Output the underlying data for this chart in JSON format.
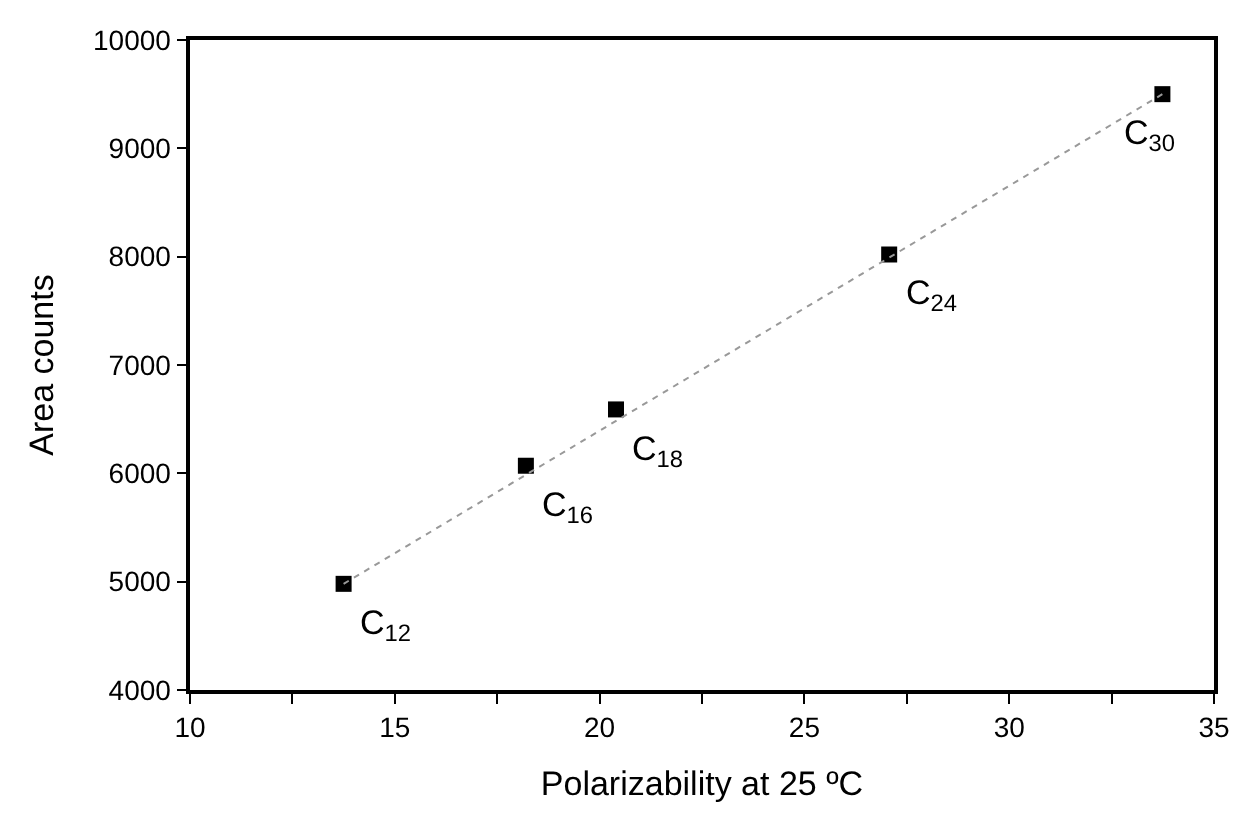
{
  "chart_data": {
    "type": "scatter",
    "xlabel": "Polarizability at 25 ºC",
    "ylabel": "Area counts",
    "x": [
      13.75,
      18.2,
      20.4,
      27.07,
      33.74
    ],
    "series": [
      {
        "color": "#000000",
        "marker": "square",
        "values": [
          4980,
          6070,
          6590,
          8020,
          9500
        ]
      },
      {
        "type": "line",
        "color": "#999999",
        "line_style": "dotted",
        "marker": "none",
        "x": [
          13.75,
          33.74
        ],
        "values": [
          4980,
          9500
        ]
      }
    ],
    "xlim": [
      10,
      35
    ],
    "ylim": [
      4000,
      10000
    ],
    "xticks": [
      10,
      {
        "value": 12.5,
        "label": null
      },
      15,
      {
        "value": 17.5,
        "label": null
      },
      20,
      {
        "value": 22.5,
        "label": null
      },
      25,
      {
        "value": 27.5,
        "label": null
      },
      30,
      {
        "value": 32.5,
        "label": null
      },
      35
    ],
    "yticks": [
      4000,
      5000,
      6000,
      7000,
      8000,
      9000,
      10000
    ],
    "annotations": [
      {
        "text": "C$_{12}$",
        "x": 13.75,
        "y": 4980
      },
      {
        "text": "C$_{16}$",
        "x": 18.2,
        "y": 6070
      },
      {
        "text": "C$_{18}$",
        "x": 20.4,
        "y": 6590
      },
      {
        "text": "C$_{24}$",
        "x": 27.07,
        "y": 8020
      },
      {
        "text": "C$_{30}$",
        "x": 33.74,
        "y": 9500
      }
    ]
  }
}
